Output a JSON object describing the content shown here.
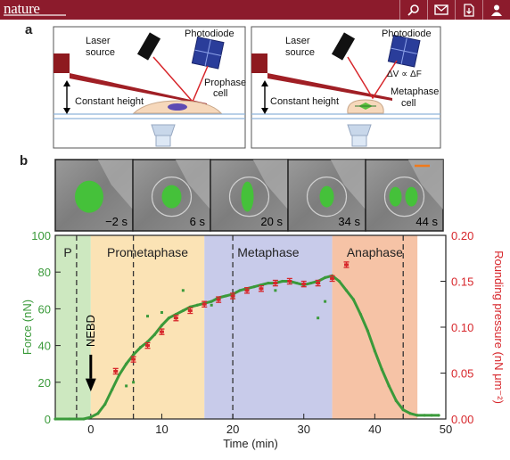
{
  "header": {
    "logo": "nature",
    "icons": [
      "search-icon",
      "email-icon",
      "download-icon",
      "user-icon"
    ],
    "bar_color": "#8c1b2c"
  },
  "panel_a": {
    "letter": "a",
    "left": {
      "laser": [
        "Laser",
        "source"
      ],
      "photodiode": "Photodiode",
      "cell": [
        "Prophase",
        "cell"
      ],
      "height": "Constant height"
    },
    "right": {
      "laser": [
        "Laser",
        "source"
      ],
      "photodiode": "Photodiode",
      "formula": "ΔV ∝ ΔF",
      "cell": [
        "Metaphase",
        "cell"
      ],
      "height": "Constant height"
    }
  },
  "panel_b": {
    "letter": "b",
    "frames": [
      "−2 s",
      "6 s",
      "20 s",
      "34 s",
      "44 s"
    ]
  },
  "chart_data": {
    "type": "line",
    "xlabel": "Time (min)",
    "ylabel": "Force (nN)",
    "y2label": "Rounding pressure (nN μm⁻²)",
    "xlim": [
      -5,
      50
    ],
    "ylim": [
      0,
      100
    ],
    "y2lim": [
      0,
      0.2
    ],
    "x_ticks": [
      "0",
      "10",
      "20",
      "30",
      "40",
      "50"
    ],
    "y_ticks": [
      "0",
      "20",
      "40",
      "60",
      "80",
      "100"
    ],
    "y2_ticks": [
      "0.00",
      "0.05",
      "0.10",
      "0.15",
      "0.20"
    ],
    "phases": [
      {
        "label": "P",
        "start": -5,
        "end": 0,
        "color": "#cde8c0"
      },
      {
        "label": "Prometaphase",
        "start": 0,
        "end": 16,
        "color": "#fbe3b5"
      },
      {
        "label": "Metaphase",
        "start": 16,
        "end": 34,
        "color": "#c8cbea"
      },
      {
        "label": "Anaphase",
        "start": 34,
        "end": 46,
        "color": "#f6c3a6"
      }
    ],
    "dashed_lines": [
      -2,
      6,
      20,
      44
    ],
    "annotation": {
      "label": "NEBD",
      "x": 0
    },
    "series": [
      {
        "name": "Force",
        "axis": "left",
        "color": "#3a9a3a",
        "x": [
          -5,
          -3,
          -1,
          0,
          1,
          2,
          3,
          4,
          5,
          6,
          7,
          8,
          9,
          10,
          11,
          12,
          13,
          14,
          15,
          16,
          17,
          18,
          19,
          20,
          21,
          22,
          23,
          24,
          25,
          26,
          27,
          28,
          29,
          30,
          31,
          32,
          33,
          34,
          35,
          36,
          37,
          38,
          39,
          40,
          41,
          42,
          43,
          44,
          45,
          46,
          47,
          48,
          49
        ],
        "y": [
          0,
          0,
          0,
          1,
          3,
          8,
          16,
          24,
          30,
          35,
          39,
          42,
          46,
          51,
          55,
          57,
          59,
          61,
          62,
          63,
          64,
          66,
          67,
          68,
          70,
          71,
          72,
          73,
          74,
          74,
          75,
          75,
          74,
          73,
          74,
          75,
          77,
          78,
          75,
          70,
          65,
          57,
          48,
          37,
          27,
          18,
          10,
          5,
          3,
          2,
          2,
          2,
          2
        ]
      },
      {
        "name": "Rounding pressure",
        "axis": "right",
        "color": "#d7262b",
        "x": [
          3.5,
          6,
          8,
          10,
          12,
          14,
          16,
          18,
          20,
          22,
          24,
          26,
          28,
          30,
          32,
          34,
          36
        ],
        "y": [
          0.052,
          0.065,
          0.08,
          0.095,
          0.11,
          0.118,
          0.125,
          0.13,
          0.134,
          0.14,
          0.142,
          0.148,
          0.15,
          0.147,
          0.148,
          0.153,
          0.168
        ],
        "err": [
          0.003,
          0.003,
          0.003,
          0.003,
          0.003,
          0.003,
          0.003,
          0.003,
          0.003,
          0.003,
          0.003,
          0.003,
          0.003,
          0.003,
          0.003,
          0.003,
          0.003
        ]
      }
    ],
    "scatter_outliers": {
      "x": [
        8,
        10,
        13,
        17,
        20,
        26,
        32,
        33,
        5,
        6
      ],
      "y": [
        56,
        58,
        70,
        62,
        66,
        70,
        55,
        64,
        18,
        20
      ]
    }
  }
}
